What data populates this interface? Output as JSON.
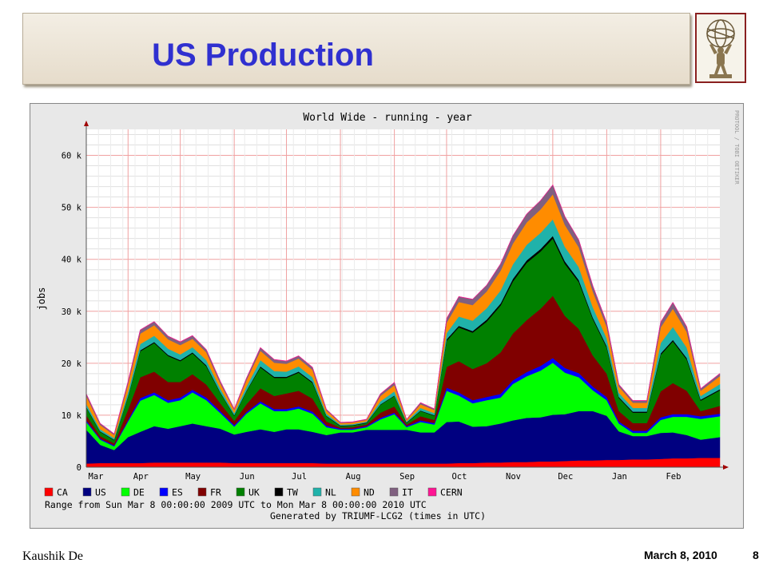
{
  "slide": {
    "title": "US Production",
    "author": "Kaushik De",
    "date": "March 8, 2010",
    "page_number": "8",
    "logo_icon": "atlas-statue-icon"
  },
  "chart_data": {
    "type": "area",
    "title": "World Wide - running - year",
    "ylabel": "jobs",
    "xlabel": "",
    "ylim": [
      0,
      65000
    ],
    "y_ticks": [
      0,
      10000,
      20000,
      30000,
      40000,
      50000,
      60000
    ],
    "y_tick_labels": [
      "0",
      "10 k",
      "20 k",
      "30 k",
      "40 k",
      "50 k",
      "60 k"
    ],
    "x_tick_labels": [
      "Mar",
      "Apr",
      "May",
      "Jun",
      "Jul",
      "Aug",
      "Sep",
      "Oct",
      "Nov",
      "Dec",
      "Jan",
      "Feb"
    ],
    "grid": true,
    "legend_position": "bottom",
    "range_text": "Range from Sun Mar  8 00:00:00 2009 UTC  to Mon Mar  8 00:00:00 2010 UTC",
    "generated_text": "Generated by TRIUMF-LCG2 (times in UTC)",
    "side_text": "PROTOOL / TOBI OETIKER",
    "x": [
      "2009-03-08",
      "2009-03-16",
      "2009-03-24",
      "2009-04-01",
      "2009-04-08",
      "2009-04-16",
      "2009-04-24",
      "2009-05-01",
      "2009-05-08",
      "2009-05-16",
      "2009-05-24",
      "2009-06-01",
      "2009-06-08",
      "2009-06-16",
      "2009-06-24",
      "2009-07-01",
      "2009-07-08",
      "2009-07-16",
      "2009-07-24",
      "2009-08-01",
      "2009-08-08",
      "2009-08-16",
      "2009-08-24",
      "2009-09-01",
      "2009-09-08",
      "2009-09-16",
      "2009-09-24",
      "2009-10-01",
      "2009-10-08",
      "2009-10-16",
      "2009-10-24",
      "2009-11-01",
      "2009-11-08",
      "2009-11-16",
      "2009-11-24",
      "2009-12-01",
      "2009-12-08",
      "2009-12-16",
      "2009-12-24",
      "2010-01-01",
      "2010-01-08",
      "2010-01-16",
      "2010-01-24",
      "2010-02-01",
      "2010-02-08",
      "2010-02-16",
      "2010-02-24",
      "2010-03-07"
    ],
    "series": [
      {
        "name": "CA",
        "color": "#ff0000",
        "values": [
          700,
          800,
          800,
          800,
          800,
          900,
          900,
          900,
          900,
          900,
          900,
          800,
          800,
          800,
          800,
          800,
          800,
          800,
          700,
          700,
          700,
          700,
          700,
          700,
          700,
          700,
          700,
          700,
          800,
          800,
          900,
          900,
          1000,
          1000,
          1100,
          1100,
          1200,
          1300,
          1300,
          1400,
          1400,
          1500,
          1500,
          1600,
          1700,
          1700,
          1800,
          1800
        ]
      },
      {
        "name": "US",
        "color": "#000080",
        "values": [
          6500,
          3500,
          2500,
          5000,
          6000,
          7000,
          6500,
          7000,
          7500,
          7000,
          6500,
          5500,
          6000,
          6500,
          6000,
          6500,
          6500,
          6000,
          5500,
          6000,
          6000,
          6500,
          6500,
          6500,
          6500,
          6000,
          6000,
          8000,
          8000,
          7000,
          7000,
          7500,
          8000,
          8500,
          8500,
          9000,
          9000,
          9500,
          9500,
          8500,
          5500,
          4500,
          4500,
          5000,
          5000,
          4500,
          3500,
          4000
        ]
      },
      {
        "name": "DE",
        "color": "#00ff00",
        "values": [
          1500,
          1000,
          700,
          3000,
          6000,
          6000,
          5000,
          5000,
          6000,
          5000,
          3000,
          1500,
          3500,
          5000,
          4000,
          3500,
          4000,
          3500,
          1500,
          500,
          500,
          500,
          2000,
          3000,
          500,
          2000,
          1500,
          6000,
          5000,
          4500,
          5000,
          5000,
          7000,
          8000,
          9000,
          10000,
          8000,
          6500,
          4000,
          3000,
          1500,
          600,
          600,
          2500,
          3000,
          3500,
          4000,
          4000
        ]
      },
      {
        "name": "ES",
        "color": "#0000ff",
        "values": [
          300,
          200,
          200,
          300,
          500,
          500,
          500,
          500,
          500,
          500,
          400,
          300,
          300,
          400,
          400,
          400,
          400,
          400,
          300,
          200,
          200,
          200,
          300,
          300,
          200,
          300,
          300,
          600,
          600,
          600,
          600,
          700,
          700,
          800,
          900,
          900,
          900,
          800,
          700,
          600,
          400,
          400,
          400,
          500,
          500,
          500,
          500,
          500
        ]
      },
      {
        "name": "FR",
        "color": "#800000",
        "values": [
          1000,
          500,
          400,
          2000,
          4000,
          4000,
          3500,
          3000,
          3000,
          2500,
          1500,
          800,
          1500,
          2500,
          2500,
          3000,
          3000,
          2500,
          800,
          200,
          300,
          300,
          1000,
          1200,
          300,
          800,
          600,
          4000,
          6000,
          6000,
          6500,
          8000,
          9000,
          10000,
          11000,
          12000,
          10000,
          8500,
          6000,
          4500,
          2000,
          1500,
          1500,
          5000,
          6000,
          4500,
          1000,
          1500
        ]
      },
      {
        "name": "UK",
        "color": "#008000",
        "values": [
          1500,
          800,
          600,
          2500,
          5000,
          5500,
          5000,
          4000,
          4000,
          3500,
          2000,
          1000,
          2500,
          4000,
          3500,
          3000,
          3500,
          3000,
          1000,
          300,
          300,
          300,
          1500,
          2000,
          300,
          1000,
          800,
          5000,
          6500,
          7000,
          8000,
          9000,
          10000,
          11000,
          11000,
          11000,
          10000,
          9000,
          7000,
          5000,
          2500,
          2000,
          2000,
          7000,
          8000,
          6000,
          2000,
          3000
        ]
      },
      {
        "name": "TW",
        "color": "#000000",
        "values": [
          100,
          100,
          100,
          100,
          200,
          200,
          200,
          200,
          200,
          200,
          100,
          100,
          100,
          200,
          200,
          200,
          200,
          200,
          100,
          100,
          100,
          100,
          100,
          100,
          100,
          100,
          100,
          300,
          300,
          300,
          400,
          400,
          500,
          500,
          500,
          500,
          500,
          400,
          300,
          300,
          200,
          200,
          200,
          300,
          300,
          300,
          200,
          200
        ]
      },
      {
        "name": "NL",
        "color": "#20b2aa",
        "values": [
          600,
          400,
          300,
          800,
          1200,
          1200,
          1200,
          1100,
          1000,
          1000,
          700,
          400,
          800,
          1200,
          1100,
          1000,
          1000,
          900,
          400,
          200,
          200,
          200,
          600,
          800,
          200,
          500,
          400,
          1200,
          1800,
          2000,
          2200,
          2500,
          2800,
          3000,
          3100,
          3200,
          2800,
          2500,
          2000,
          1500,
          800,
          700,
          700,
          2000,
          2500,
          2000,
          700,
          1000
        ]
      },
      {
        "name": "ND",
        "color": "#ff8c00",
        "values": [
          1500,
          800,
          600,
          1500,
          2000,
          2000,
          1800,
          1800,
          1600,
          1500,
          1000,
          600,
          1200,
          1800,
          1600,
          1500,
          1500,
          1400,
          600,
          300,
          300,
          300,
          1000,
          1200,
          300,
          700,
          600,
          2000,
          2800,
          3000,
          3200,
          3800,
          4000,
          4300,
          4500,
          4800,
          4200,
          3800,
          3000,
          2200,
          1200,
          1000,
          1000,
          3000,
          3500,
          3000,
          1000,
          1500
        ]
      },
      {
        "name": "IT",
        "color": "#806080",
        "values": [
          400,
          300,
          200,
          500,
          700,
          700,
          600,
          600,
          600,
          500,
          400,
          200,
          400,
          600,
          600,
          500,
          500,
          500,
          200,
          100,
          100,
          100,
          400,
          500,
          100,
          300,
          200,
          800,
          1000,
          1100,
          1200,
          1300,
          1500,
          1600,
          1700,
          1800,
          1600,
          1400,
          1100,
          800,
          400,
          400,
          400,
          1000,
          1200,
          1000,
          400,
          500
        ]
      },
      {
        "name": "CERN",
        "color": "#ff1493",
        "values": [
          50,
          50,
          50,
          50,
          50,
          50,
          50,
          50,
          50,
          50,
          50,
          50,
          50,
          50,
          50,
          50,
          50,
          50,
          50,
          50,
          50,
          50,
          50,
          50,
          50,
          50,
          50,
          50,
          50,
          50,
          50,
          50,
          50,
          50,
          50,
          50,
          50,
          50,
          50,
          50,
          50,
          50,
          50,
          50,
          50,
          50,
          50,
          50
        ]
      }
    ]
  }
}
